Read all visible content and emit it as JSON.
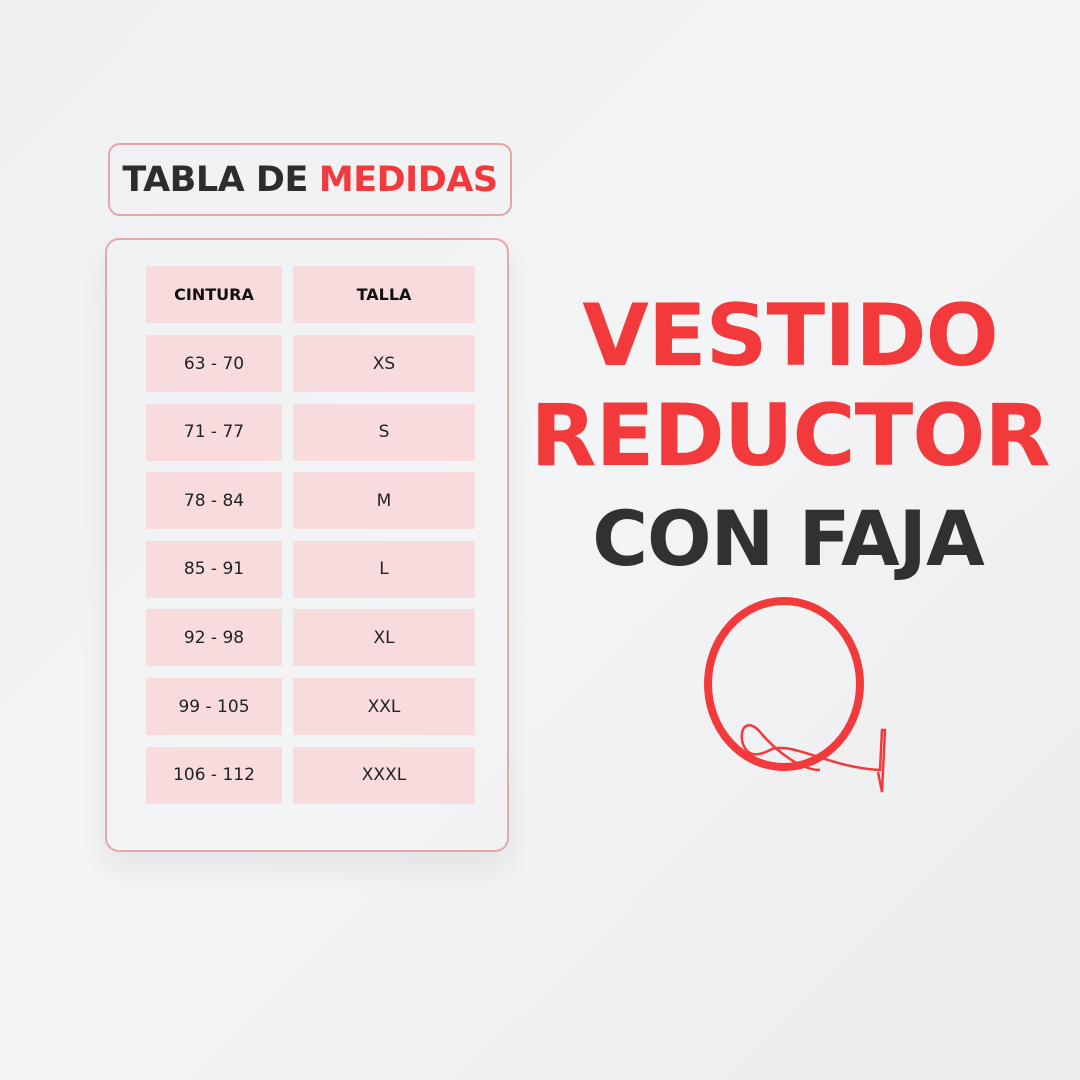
{
  "title": {
    "part1": "TABLA DE",
    "part2": "MEDIDAS"
  },
  "table": {
    "headers": [
      "CINTURA",
      "TALLA"
    ],
    "rows": [
      [
        "63 - 70",
        "XS"
      ],
      [
        "71 - 77",
        "S"
      ],
      [
        "78 - 84",
        "M"
      ],
      [
        "85 - 91",
        "L"
      ],
      [
        "92 - 98",
        "XL"
      ],
      [
        "99 - 105",
        "XXL"
      ],
      [
        "106 - 112",
        "XXXL"
      ]
    ]
  },
  "product": {
    "line1": "VESTIDO",
    "line2": "REDUCTOR",
    "line3": "CON FAJA"
  },
  "logo": {
    "letter": "Q"
  },
  "colors": {
    "accent": "#f23a3d",
    "dark": "#2f3133",
    "cell": "#f8dcdd",
    "border": "#e8a7a8"
  }
}
